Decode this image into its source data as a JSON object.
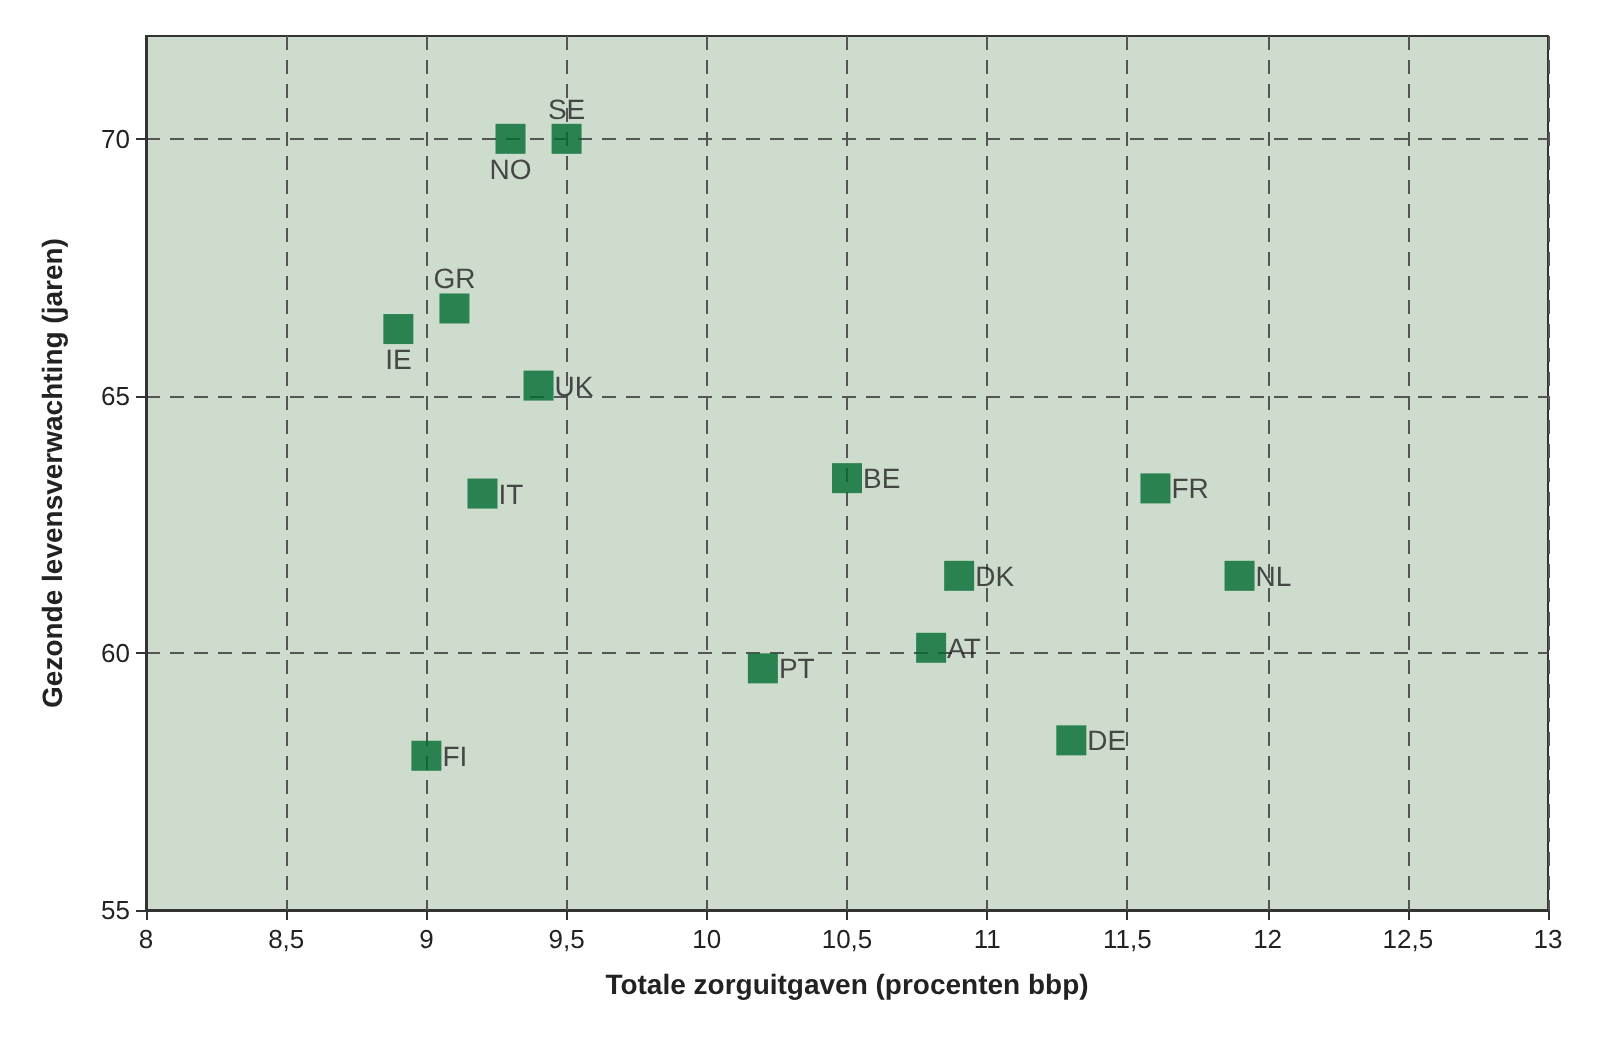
{
  "chart_data": {
    "type": "scatter",
    "xlabel": "Totale zorguitgaven (procenten bbp)",
    "ylabel": "Gezonde levensverwachting (jaren)",
    "x": [
      9.3,
      9.5,
      9.1,
      8.9,
      9.4,
      9.2,
      10.5,
      11.6,
      10.9,
      11.9,
      10.8,
      10.2,
      11.3,
      9.0
    ],
    "series": [
      {
        "color": "#006b2f",
        "values": [
          70.0,
          70.0,
          66.7,
          66.3,
          65.2,
          63.1,
          63.4,
          63.2,
          61.5,
          61.5,
          60.1,
          59.7,
          58.3,
          58.0
        ]
      }
    ],
    "annotations": [
      {
        "text": "NO",
        "x": 9.3,
        "y": 70.0
      },
      {
        "text": "SE",
        "x": 9.5,
        "y": 70.0
      },
      {
        "text": "GR",
        "x": 9.1,
        "y": 66.7
      },
      {
        "text": "IE",
        "x": 8.9,
        "y": 66.3
      },
      {
        "text": "UK",
        "x": 9.4,
        "y": 65.2
      },
      {
        "text": "IT",
        "x": 9.2,
        "y": 63.1
      },
      {
        "text": "BE",
        "x": 10.5,
        "y": 63.4
      },
      {
        "text": "FR",
        "x": 11.6,
        "y": 63.2
      },
      {
        "text": "DK",
        "x": 10.9,
        "y": 61.5
      },
      {
        "text": "NL",
        "x": 11.9,
        "y": 61.5
      },
      {
        "text": "AT",
        "x": 10.8,
        "y": 60.1
      },
      {
        "text": "PT",
        "x": 10.2,
        "y": 59.7
      },
      {
        "text": "DE",
        "x": 11.3,
        "y": 58.3
      },
      {
        "text": "FI",
        "x": 9.0,
        "y": 58.0
      }
    ],
    "xlim": [
      8,
      13
    ],
    "xticks": [
      8,
      {
        "value": 8.5,
        "label": "8,5"
      },
      9,
      {
        "value": 9.5,
        "label": "9,5"
      },
      10,
      {
        "value": 10.5,
        "label": "10,5"
      },
      11,
      {
        "value": 11.5,
        "label": "11,5"
      },
      12,
      {
        "value": 12.5,
        "label": "12,5"
      },
      13
    ],
    "ylim": [
      55,
      72
    ],
    "yticks": [
      55,
      60,
      65,
      70
    ],
    "grid": true,
    "marker": "square"
  }
}
